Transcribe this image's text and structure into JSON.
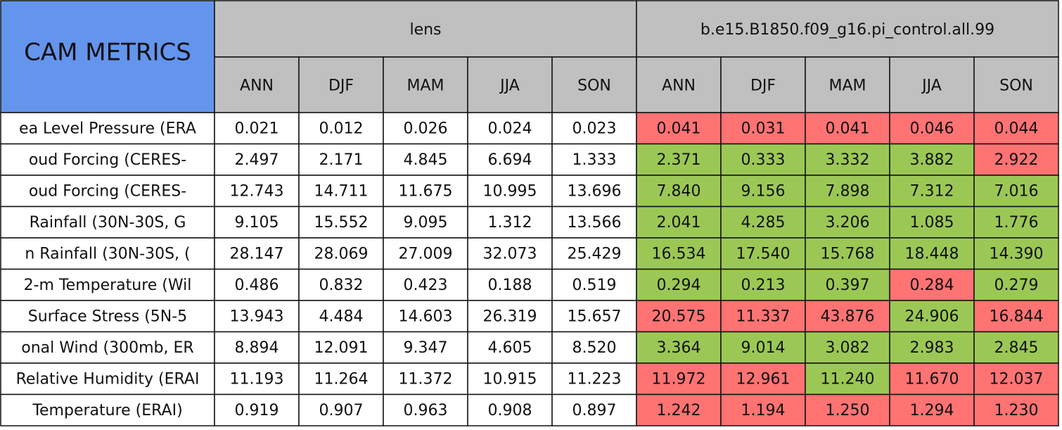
{
  "header": {
    "title": "CAM METRICS",
    "groups": [
      {
        "name": "lens",
        "seasons": [
          "ANN",
          "DJF",
          "MAM",
          "JJA",
          "SON"
        ]
      },
      {
        "name": "b.e15.B1850.f09_g16.pi_control.all.99",
        "seasons": [
          "ANN",
          "DJF",
          "MAM",
          "JJA",
          "SON"
        ]
      }
    ]
  },
  "table": {
    "rows": [
      {
        "label": "ea Level Pressure (ERA",
        "values": [
          "0.021",
          "0.012",
          "0.026",
          "0.024",
          "0.023",
          "0.041",
          "0.031",
          "0.041",
          "0.046",
          "0.044"
        ],
        "colors": [
          "#ffffff",
          "#ffffff",
          "#ffffff",
          "#ffffff",
          "#ffffff",
          "#ff7373",
          "#ff7373",
          "#ff7373",
          "#ff7373",
          "#ff7373"
        ]
      },
      {
        "label": "oud Forcing (CERES-",
        "values": [
          "2.497",
          "2.171",
          "4.845",
          "6.694",
          "1.333",
          "2.371",
          "0.333",
          "3.332",
          "3.882",
          "2.922"
        ],
        "colors": [
          "#ffffff",
          "#ffffff",
          "#ffffff",
          "#ffffff",
          "#ffffff",
          "#9bc855",
          "#9bc855",
          "#9bc855",
          "#9bc855",
          "#ff7373"
        ]
      },
      {
        "label": "oud Forcing (CERES-",
        "values": [
          "12.743",
          "14.711",
          "11.675",
          "10.995",
          "13.696",
          "7.840",
          "9.156",
          "7.898",
          "7.312",
          "7.016"
        ],
        "colors": [
          "#ffffff",
          "#ffffff",
          "#ffffff",
          "#ffffff",
          "#ffffff",
          "#9bc855",
          "#9bc855",
          "#9bc855",
          "#9bc855",
          "#9bc855"
        ]
      },
      {
        "label": "Rainfall (30N-30S, G",
        "values": [
          "9.105",
          "15.552",
          "9.095",
          "1.312",
          "13.566",
          "2.041",
          "4.285",
          "3.206",
          "1.085",
          "1.776"
        ],
        "colors": [
          "#ffffff",
          "#ffffff",
          "#ffffff",
          "#ffffff",
          "#ffffff",
          "#9bc855",
          "#9bc855",
          "#9bc855",
          "#9bc855",
          "#9bc855"
        ]
      },
      {
        "label": "n Rainfall (30N-30S, (",
        "values": [
          "28.147",
          "28.069",
          "27.009",
          "32.073",
          "25.429",
          "16.534",
          "17.540",
          "15.768",
          "18.448",
          "14.390"
        ],
        "colors": [
          "#ffffff",
          "#ffffff",
          "#ffffff",
          "#ffffff",
          "#ffffff",
          "#9bc855",
          "#9bc855",
          "#9bc855",
          "#9bc855",
          "#9bc855"
        ]
      },
      {
        "label": "2-m Temperature (Wil",
        "values": [
          "0.486",
          "0.832",
          "0.423",
          "0.188",
          "0.519",
          "0.294",
          "0.213",
          "0.397",
          "0.284",
          "0.279"
        ],
        "colors": [
          "#ffffff",
          "#ffffff",
          "#ffffff",
          "#ffffff",
          "#ffffff",
          "#9bc855",
          "#9bc855",
          "#9bc855",
          "#ff7373",
          "#9bc855"
        ]
      },
      {
        "label": "Surface Stress (5N-5",
        "values": [
          "13.943",
          "4.484",
          "14.603",
          "26.319",
          "15.657",
          "20.575",
          "11.337",
          "43.876",
          "24.906",
          "16.844"
        ],
        "colors": [
          "#ffffff",
          "#ffffff",
          "#ffffff",
          "#ffffff",
          "#ffffff",
          "#ff7373",
          "#ff7373",
          "#ff7373",
          "#9bc855",
          "#ff7373"
        ]
      },
      {
        "label": "onal Wind (300mb, ER",
        "values": [
          "8.894",
          "12.091",
          "9.347",
          "4.605",
          "8.520",
          "3.364",
          "9.014",
          "3.082",
          "2.983",
          "2.845"
        ],
        "colors": [
          "#ffffff",
          "#ffffff",
          "#ffffff",
          "#ffffff",
          "#ffffff",
          "#9bc855",
          "#9bc855",
          "#9bc855",
          "#9bc855",
          "#9bc855"
        ]
      },
      {
        "label": "Relative Humidity (ERAI",
        "values": [
          "11.193",
          "11.264",
          "11.372",
          "10.915",
          "11.223",
          "11.972",
          "12.961",
          "11.240",
          "11.670",
          "12.037"
        ],
        "colors": [
          "#ffffff",
          "#ffffff",
          "#ffffff",
          "#ffffff",
          "#ffffff",
          "#ff7373",
          "#ff7373",
          "#9bc855",
          "#ff7373",
          "#ff7373"
        ]
      },
      {
        "label": "Temperature (ERAI)",
        "values": [
          "0.919",
          "0.907",
          "0.963",
          "0.908",
          "0.897",
          "1.242",
          "1.194",
          "1.250",
          "1.294",
          "1.230"
        ],
        "colors": [
          "#ffffff",
          "#ffffff",
          "#ffffff",
          "#ffffff",
          "#ffffff",
          "#ff7373",
          "#ff7373",
          "#ff7373",
          "#ff7373",
          "#ff7373"
        ]
      }
    ]
  }
}
